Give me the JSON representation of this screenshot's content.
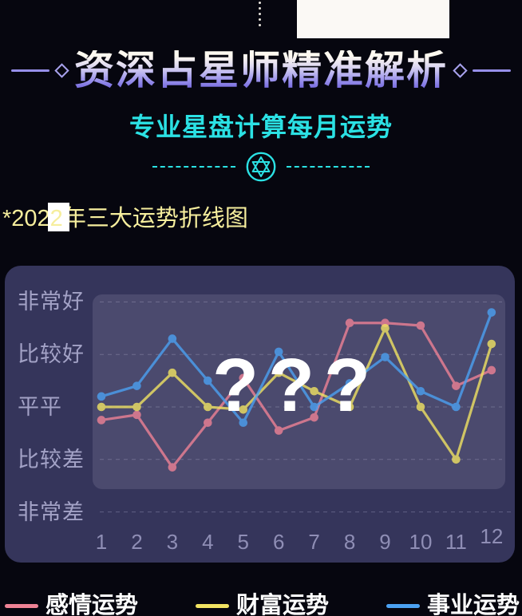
{
  "header": {
    "title": "资深占星师精准解析",
    "subtitle": "专业星盘计算每月运势",
    "divider_icon": "hexagram-star-in-circle-icon"
  },
  "section_title": {
    "full_text": "*2022年三大运势折线图",
    "prefix": "*202",
    "boxed_char": "2",
    "suffix": "年三大运势折线图",
    "highlight_box_color": "#ffffff"
  },
  "chart_data": {
    "type": "line",
    "x_labels": [
      "1",
      "2",
      "3",
      "4",
      "5",
      "6",
      "7",
      "8",
      "9",
      "10",
      "11",
      "12"
    ],
    "y_axis_labels": [
      "非常好",
      "比较好",
      "平平",
      "比较差",
      "非常差"
    ],
    "y_axis_values_top_to_bottom": [
      5,
      4,
      3,
      2,
      1
    ],
    "grid": "dashed horizontal lines",
    "legend_position": "bottom",
    "overlay_text": "???",
    "series": [
      {
        "name": "感情运势",
        "color": "#ee8295",
        "values": [
          2.75,
          2.85,
          1.85,
          2.7,
          3.55,
          2.55,
          2.8,
          4.6,
          4.6,
          4.55,
          3.4,
          3.7
        ]
      },
      {
        "name": "财富运势",
        "color": "#f1e362",
        "values": [
          3.0,
          3.0,
          3.65,
          3.0,
          2.95,
          3.65,
          3.3,
          3.0,
          4.5,
          3.0,
          2.0,
          4.2
        ]
      },
      {
        "name": "事业运势",
        "color": "#4ba1f2",
        "values": [
          3.2,
          3.4,
          4.3,
          3.5,
          2.7,
          4.05,
          3.0,
          3.45,
          3.95,
          3.3,
          3.0,
          4.8
        ]
      }
    ]
  },
  "legend": {
    "items": [
      {
        "label": "感情运势",
        "color": "#ee8295"
      },
      {
        "label": "财富运势",
        "color": "#f1e362"
      },
      {
        "label": "事业运势",
        "color": "#4ba1f2"
      }
    ]
  },
  "colors": {
    "page_background": "#06060f",
    "panel_background": "#35355b",
    "plot_background": "#4b4a6e",
    "axis_label": "#a3a2c6",
    "x_axis_label": "#8f8eb5",
    "subtitle_accent": "#2be1e4",
    "section_title_text": "#f6ee9d",
    "title_gradient_top": "#fef9f0",
    "title_gradient_bottom": "#7165dd",
    "overlay_question_marks": "#ffffff"
  }
}
